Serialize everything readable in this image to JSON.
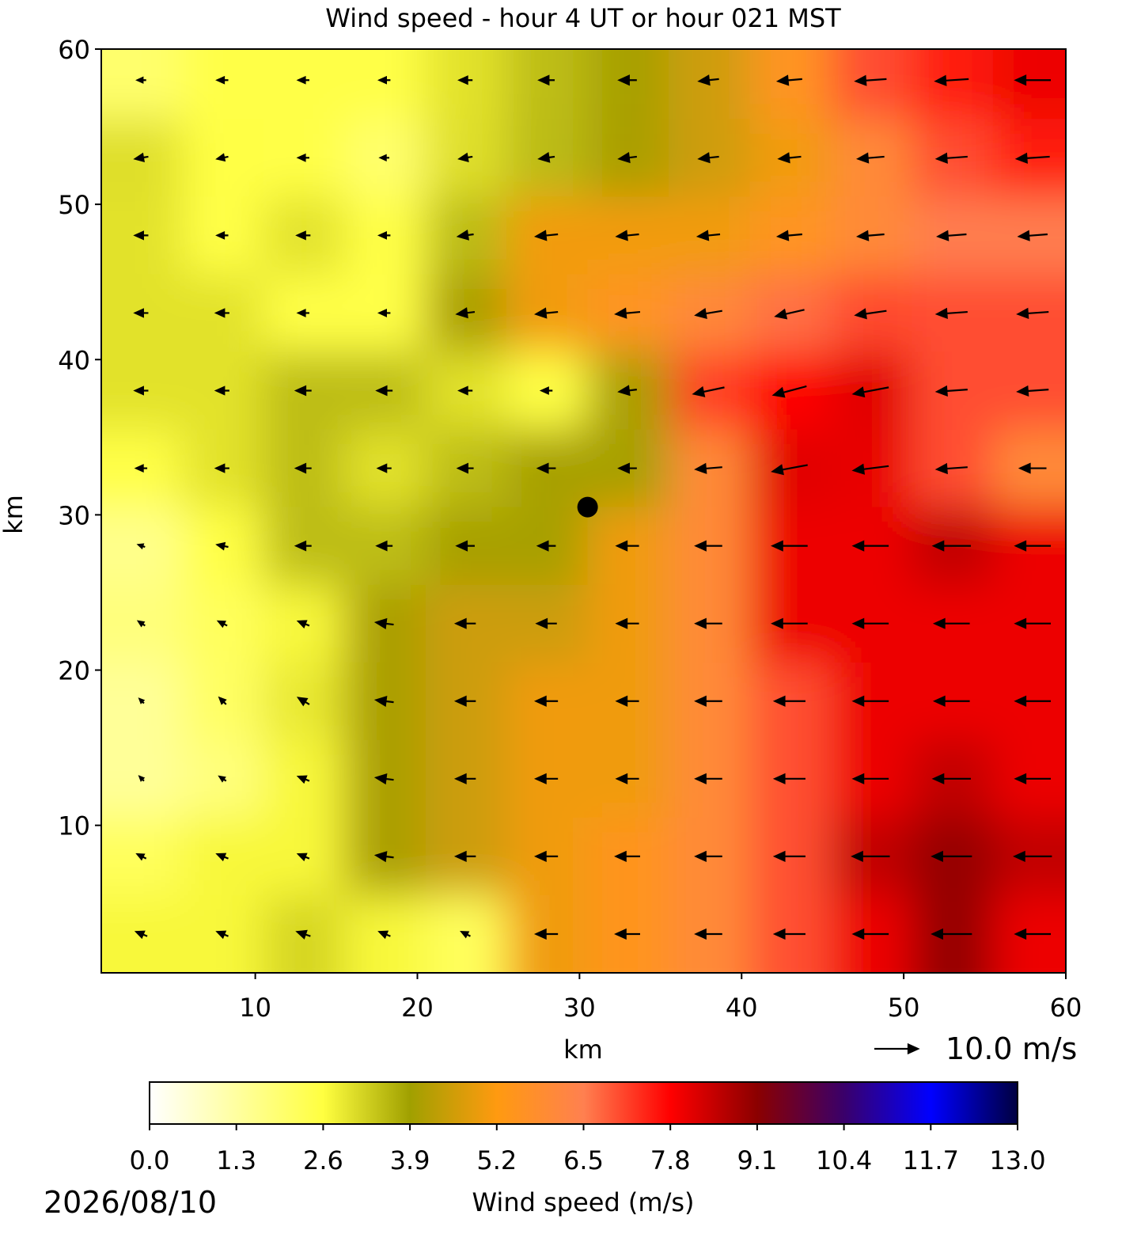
{
  "chart_data": {
    "type": "wind-field",
    "title": "Wind speed - hour 4 UT or hour 021 MST",
    "x_label": "km",
    "y_label": "km",
    "xlim": [
      0.5,
      60
    ],
    "ylim": [
      0.5,
      60
    ],
    "xticks": [
      10,
      20,
      30,
      40,
      50,
      60
    ],
    "yticks": [
      10,
      20,
      30,
      40,
      50,
      60
    ],
    "grid_x": [
      3,
      8,
      13,
      18,
      23,
      28,
      33,
      38,
      43,
      48,
      53,
      58
    ],
    "grid_y": [
      58,
      53,
      48,
      43,
      38,
      33,
      28,
      23,
      18,
      13,
      8,
      3
    ],
    "u": [
      [
        -2,
        -2.5,
        -2.5,
        -2.5,
        -3,
        -3.5,
        -4,
        -4.5,
        -5.5,
        -7,
        -7.5,
        -8
      ],
      [
        -3,
        -2.5,
        -2.5,
        -2,
        -3,
        -3.5,
        -4,
        -4.5,
        -5,
        -6,
        -7,
        -7.5
      ],
      [
        -3,
        -2.5,
        -3,
        -2.5,
        -3.5,
        -5,
        -5,
        -5,
        -5.5,
        -6,
        -6.5,
        -6.5
      ],
      [
        -3,
        -3,
        -2.5,
        -2.5,
        -4,
        -5,
        -5.5,
        -6,
        -6.5,
        -7,
        -7,
        -7
      ],
      [
        -3,
        -3,
        -3.5,
        -3.5,
        -3,
        -2.5,
        -4,
        -7,
        -7.5,
        -8,
        -7,
        -7
      ],
      [
        -2.5,
        -3,
        -3.5,
        -3,
        -3.5,
        -4,
        -4,
        -6,
        -8,
        -8,
        -7,
        -6
      ],
      [
        -1.5,
        -2.5,
        -3.5,
        -3.5,
        -4,
        -4,
        -5,
        -6,
        -8,
        -8,
        -8.5,
        -8
      ],
      [
        -1.5,
        -2,
        -2.5,
        -4,
        -4.5,
        -4.5,
        -5,
        -6,
        -8,
        -8,
        -8,
        -8
      ],
      [
        -1,
        -1.5,
        -2.5,
        -4,
        -4.5,
        -5,
        -5,
        -6,
        -7,
        -8,
        -8,
        -8
      ],
      [
        -1,
        -1.5,
        -2.5,
        -4,
        -4.5,
        -5,
        -5,
        -6,
        -7,
        -8,
        -8.5,
        -8
      ],
      [
        -2,
        -2.5,
        -2.5,
        -4,
        -4.5,
        -5,
        -5.5,
        -6,
        -7,
        -8.5,
        -9,
        -8.5
      ],
      [
        -2.5,
        -2.5,
        -3,
        -2.5,
        -2,
        -5,
        -5.5,
        -6,
        -7,
        -8,
        -9,
        -8
      ]
    ],
    "v": [
      [
        0,
        0,
        0,
        0,
        0,
        0,
        0,
        -0.5,
        -0.5,
        -0.5,
        -0.5,
        0
      ],
      [
        -0.5,
        -0.5,
        0,
        0,
        -0.5,
        -0.5,
        -0.5,
        -0.5,
        -0.5,
        -0.5,
        -0.5,
        -0.5
      ],
      [
        0,
        0,
        0,
        0,
        -0.5,
        -0.5,
        -0.5,
        -0.5,
        -0.5,
        -0.5,
        -0.5,
        -0.5
      ],
      [
        0,
        0,
        0,
        0,
        -0.5,
        -0.5,
        -0.5,
        -1,
        -1.5,
        -1,
        -0.5,
        -0.5
      ],
      [
        0,
        0,
        0,
        0,
        0,
        0,
        -0.5,
        -1.5,
        -2,
        -1.5,
        -0.5,
        -0.5
      ],
      [
        0,
        0,
        0,
        0,
        0,
        0,
        0,
        -0.5,
        -1.5,
        -1,
        -0.5,
        0
      ],
      [
        0.5,
        0.5,
        0,
        0,
        0,
        0,
        0,
        0,
        0,
        0,
        0,
        0
      ],
      [
        1,
        1,
        1,
        0.5,
        0,
        0,
        0,
        0,
        0,
        0,
        0,
        0
      ],
      [
        1,
        1.5,
        1.5,
        0.5,
        0,
        0,
        0,
        0,
        0,
        0,
        0,
        0
      ],
      [
        1,
        1,
        1,
        0.5,
        0,
        0,
        0,
        0,
        0,
        0,
        0,
        0
      ],
      [
        1,
        1,
        1,
        0.5,
        0,
        0,
        0,
        0,
        0,
        0,
        0,
        0
      ],
      [
        1,
        1,
        1,
        1,
        1,
        0,
        0,
        0,
        0,
        0,
        0,
        0
      ]
    ],
    "site": [
      30.5,
      30.5
    ],
    "quiver_key": {
      "value": 10,
      "label": "10.0 m/s"
    },
    "colorbar_label": "Wind speed (m/s)",
    "clim": [
      0,
      13
    ],
    "colormap": [
      "#ffffff",
      "#ffffa0",
      "#ffff40",
      "#a0a000",
      "#ff9a10",
      "#ff8050",
      "#ff0000",
      "#8b0000",
      "#3a006a",
      "#0000ff",
      "#000040"
    ],
    "colorbar_ticks": [
      {
        "value": 0,
        "label": "0.0"
      },
      {
        "value": 1.3,
        "label": "1.3"
      },
      {
        "value": 2.6,
        "label": "2.6"
      },
      {
        "value": 3.9,
        "label": "3.9"
      },
      {
        "value": 5.2,
        "label": "5.2"
      },
      {
        "value": 6.5,
        "label": "6.5"
      },
      {
        "value": 7.8,
        "label": "7.8"
      },
      {
        "value": 9.1,
        "label": "9.1"
      },
      {
        "value": 10.4,
        "label": "10.4"
      },
      {
        "value": 11.7,
        "label": "11.7"
      },
      {
        "value": 13,
        "label": "13.0"
      }
    ],
    "date": "2026/08/10"
  }
}
